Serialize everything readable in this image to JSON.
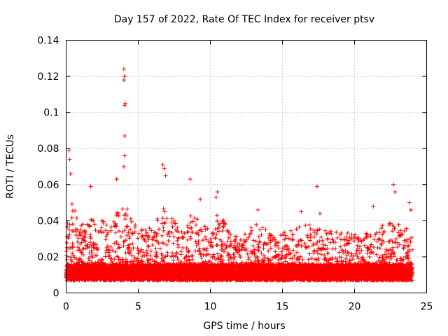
{
  "chart_data": {
    "type": "scatter",
    "title": "Day 157 of 2022, Rate Of TEC Index for receiver ptsv",
    "xlabel": "GPS time / hours",
    "ylabel": "ROTI / TECUs",
    "xlim": [
      0,
      25
    ],
    "ylim": [
      0,
      0.14
    ],
    "x_ticks": [
      0,
      5,
      10,
      15,
      20,
      25
    ],
    "x_tick_labels": [
      "0",
      "5",
      "10",
      "15",
      "20",
      "25"
    ],
    "y_ticks": [
      0,
      0.02,
      0.04,
      0.06,
      0.08,
      0.1,
      0.12,
      0.14
    ],
    "y_tick_labels": [
      "0",
      "0.02",
      "0.04",
      "0.06",
      "0.08",
      "0.1",
      "0.12",
      "0.14"
    ],
    "grid": true,
    "marker": "+",
    "marker_color": "#ff0000",
    "series": [
      {
        "name": "ROTI",
        "peaks": [
          {
            "x": 0.2,
            "y": 0.079
          },
          {
            "x": 0.25,
            "y": 0.074
          },
          {
            "x": 0.3,
            "y": 0.066
          },
          {
            "x": 1.7,
            "y": 0.059
          },
          {
            "x": 3.5,
            "y": 0.063
          },
          {
            "x": 4.0,
            "y": 0.124
          },
          {
            "x": 4.05,
            "y": 0.12
          },
          {
            "x": 4.0,
            "y": 0.118
          },
          {
            "x": 4.1,
            "y": 0.105
          },
          {
            "x": 4.05,
            "y": 0.104
          },
          {
            "x": 4.05,
            "y": 0.087
          },
          {
            "x": 4.05,
            "y": 0.076
          },
          {
            "x": 4.0,
            "y": 0.07
          },
          {
            "x": 6.7,
            "y": 0.071
          },
          {
            "x": 6.8,
            "y": 0.069
          },
          {
            "x": 6.9,
            "y": 0.065
          },
          {
            "x": 8.6,
            "y": 0.063
          },
          {
            "x": 9.3,
            "y": 0.052
          },
          {
            "x": 10.5,
            "y": 0.056
          },
          {
            "x": 10.4,
            "y": 0.053
          },
          {
            "x": 13.3,
            "y": 0.046
          },
          {
            "x": 16.3,
            "y": 0.045
          },
          {
            "x": 17.4,
            "y": 0.059
          },
          {
            "x": 17.6,
            "y": 0.044
          },
          {
            "x": 21.3,
            "y": 0.048
          },
          {
            "x": 22.7,
            "y": 0.06
          },
          {
            "x": 22.8,
            "y": 0.056
          },
          {
            "x": 23.8,
            "y": 0.05
          },
          {
            "x": 23.9,
            "y": 0.046
          }
        ],
        "envelope": [
          {
            "x": 0,
            "y": 0.034
          },
          {
            "x": 0.3,
            "y": 0.052
          },
          {
            "x": 1,
            "y": 0.038
          },
          {
            "x": 2,
            "y": 0.042
          },
          {
            "x": 3,
            "y": 0.04
          },
          {
            "x": 4,
            "y": 0.05
          },
          {
            "x": 5,
            "y": 0.036
          },
          {
            "x": 6,
            "y": 0.036
          },
          {
            "x": 6.8,
            "y": 0.05
          },
          {
            "x": 8,
            "y": 0.034
          },
          {
            "x": 8.7,
            "y": 0.045
          },
          {
            "x": 10,
            "y": 0.034
          },
          {
            "x": 10.5,
            "y": 0.045
          },
          {
            "x": 12,
            "y": 0.03
          },
          {
            "x": 13.3,
            "y": 0.04
          },
          {
            "x": 14.5,
            "y": 0.03
          },
          {
            "x": 15.5,
            "y": 0.036
          },
          {
            "x": 16.5,
            "y": 0.04
          },
          {
            "x": 17.5,
            "y": 0.036
          },
          {
            "x": 19,
            "y": 0.034
          },
          {
            "x": 20.5,
            "y": 0.032
          },
          {
            "x": 21.5,
            "y": 0.036
          },
          {
            "x": 22.7,
            "y": 0.04
          },
          {
            "x": 23.9,
            "y": 0.036
          },
          {
            "x": 24,
            "y": 0.03
          }
        ],
        "baseline": [
          0.007,
          0.016
        ]
      }
    ]
  }
}
